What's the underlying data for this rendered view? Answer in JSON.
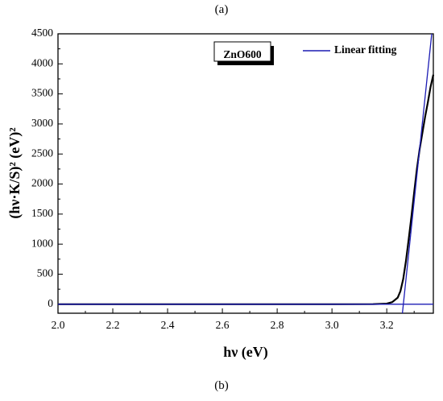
{
  "captions": {
    "top": "(a)",
    "bottom": "(b)"
  },
  "sample_label": "ZnO600",
  "chart_data": {
    "type": "line",
    "xlabel": "hν (eV)",
    "ylabel": "(hν·K/S)² (eV)²",
    "xlim": [
      2.0,
      3.37
    ],
    "ylim": [
      -150,
      4500
    ],
    "x_ticks": [
      2.0,
      2.2,
      2.4,
      2.6,
      2.8,
      3.0,
      3.2
    ],
    "y_ticks": [
      0,
      500,
      1000,
      1500,
      2000,
      2500,
      3000,
      3500,
      4000,
      4500
    ],
    "grid": false,
    "legend_position": "top-right",
    "colors": {
      "data": "#000000",
      "fit": "#1c1cb4",
      "axes": "#000000"
    },
    "series": [
      {
        "style": "data",
        "x": [
          2.0,
          2.6,
          3.0,
          3.15,
          3.2,
          3.22,
          3.24,
          3.25,
          3.26,
          3.27,
          3.28,
          3.29,
          3.3,
          3.31,
          3.32,
          3.33,
          3.34,
          3.35,
          3.36,
          3.37
        ],
        "y": [
          0,
          0,
          0,
          2,
          10,
          35,
          110,
          220,
          420,
          720,
          1080,
          1460,
          1860,
          2250,
          2580,
          2850,
          3120,
          3360,
          3620,
          3820
        ]
      },
      {
        "name": "Linear fitting",
        "style": "fit",
        "x": [
          2.0,
          3.37
        ],
        "y": [
          0,
          0
        ]
      },
      {
        "style": "fit",
        "x": [
          3.257,
          3.364
        ],
        "y": [
          -150,
          4500
        ]
      }
    ]
  }
}
